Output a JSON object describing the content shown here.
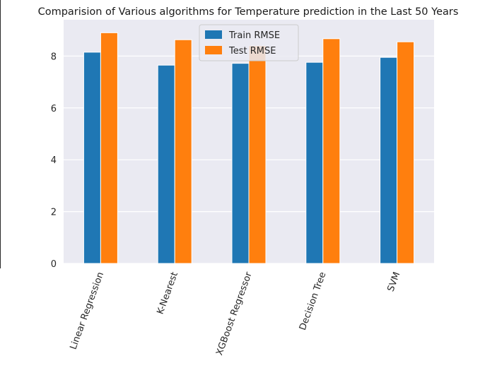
{
  "chart_data": {
    "type": "bar",
    "title": "Comparision of Various algorithms for Temperature prediction in the Last 50 Years",
    "xlabel": "",
    "ylabel": "",
    "categories": [
      "Linear Regression",
      "K-Nearest",
      "XGBoost Regressor",
      "Decision Tree",
      "SVM"
    ],
    "series": [
      {
        "name": "Train RMSE",
        "values": [
          8.15,
          7.65,
          7.72,
          7.76,
          7.95
        ],
        "color": "#1f77b4"
      },
      {
        "name": "Test RMSE",
        "values": [
          8.9,
          8.63,
          8.4,
          8.67,
          8.55
        ],
        "color": "#ff7f0e"
      }
    ],
    "ylim": [
      0,
      9.4
    ],
    "yticks": [
      0,
      2,
      4,
      6,
      8
    ],
    "grid": true,
    "legend_position": "top-center",
    "background": "#eaeaf2",
    "grid_color": "#ffffff"
  }
}
